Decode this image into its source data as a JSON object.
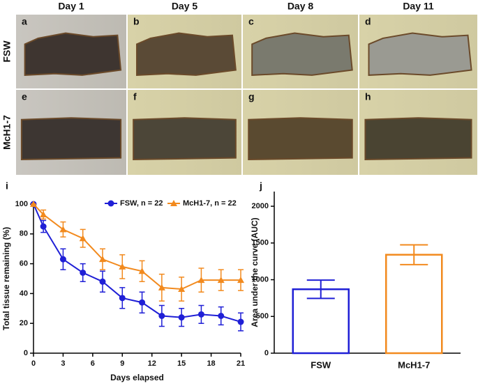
{
  "photos": {
    "columns": [
      "Day 1",
      "Day 5",
      "Day 8",
      "Day 11"
    ],
    "rows": [
      "FSW",
      "McH1-7"
    ],
    "panels": [
      "a",
      "b",
      "c",
      "d",
      "e",
      "f",
      "g",
      "h"
    ]
  },
  "chart_data": [
    {
      "type": "line",
      "panel": "i",
      "xlabel": "Days elapsed",
      "ylabel": "Total tissue remaining (%)",
      "x": [
        0,
        1,
        3,
        5,
        7,
        9,
        11,
        13,
        15,
        17,
        19,
        21
      ],
      "xlim": [
        0,
        21
      ],
      "xticks": [
        0,
        3,
        6,
        9,
        12,
        15,
        18,
        21
      ],
      "ylim": [
        0,
        100
      ],
      "yticks": [
        0,
        20,
        40,
        60,
        80,
        100
      ],
      "legend": "upper right",
      "series": [
        {
          "name": "FSW, n = 22",
          "color": "#1f1fd6",
          "marker": "circle",
          "values": [
            100,
            85,
            63,
            54,
            48,
            37,
            34,
            25,
            24,
            26,
            25,
            21
          ],
          "errors": [
            0,
            4,
            7,
            6,
            7,
            7,
            7,
            7,
            6,
            6,
            6,
            6
          ]
        },
        {
          "name": "McH1-7, n = 22",
          "color": "#f28a1e",
          "marker": "triangle",
          "values": [
            100,
            93,
            83,
            77,
            63,
            58,
            55,
            44,
            43,
            49,
            49,
            49
          ],
          "errors": [
            0,
            3,
            5,
            6,
            7,
            8,
            7,
            9,
            8,
            8,
            7,
            7
          ]
        }
      ]
    },
    {
      "type": "bar",
      "panel": "j",
      "ylabel": "Area under the curve (AUC)",
      "categories": [
        "FSW",
        "McH1-7"
      ],
      "values": [
        870,
        1340
      ],
      "errors": [
        125,
        135
      ],
      "colors": [
        "#1f1fd6",
        "#f28a1e"
      ],
      "ylim": [
        0,
        2200
      ],
      "yticks": [
        0,
        500,
        1000,
        1500,
        2000
      ]
    }
  ]
}
